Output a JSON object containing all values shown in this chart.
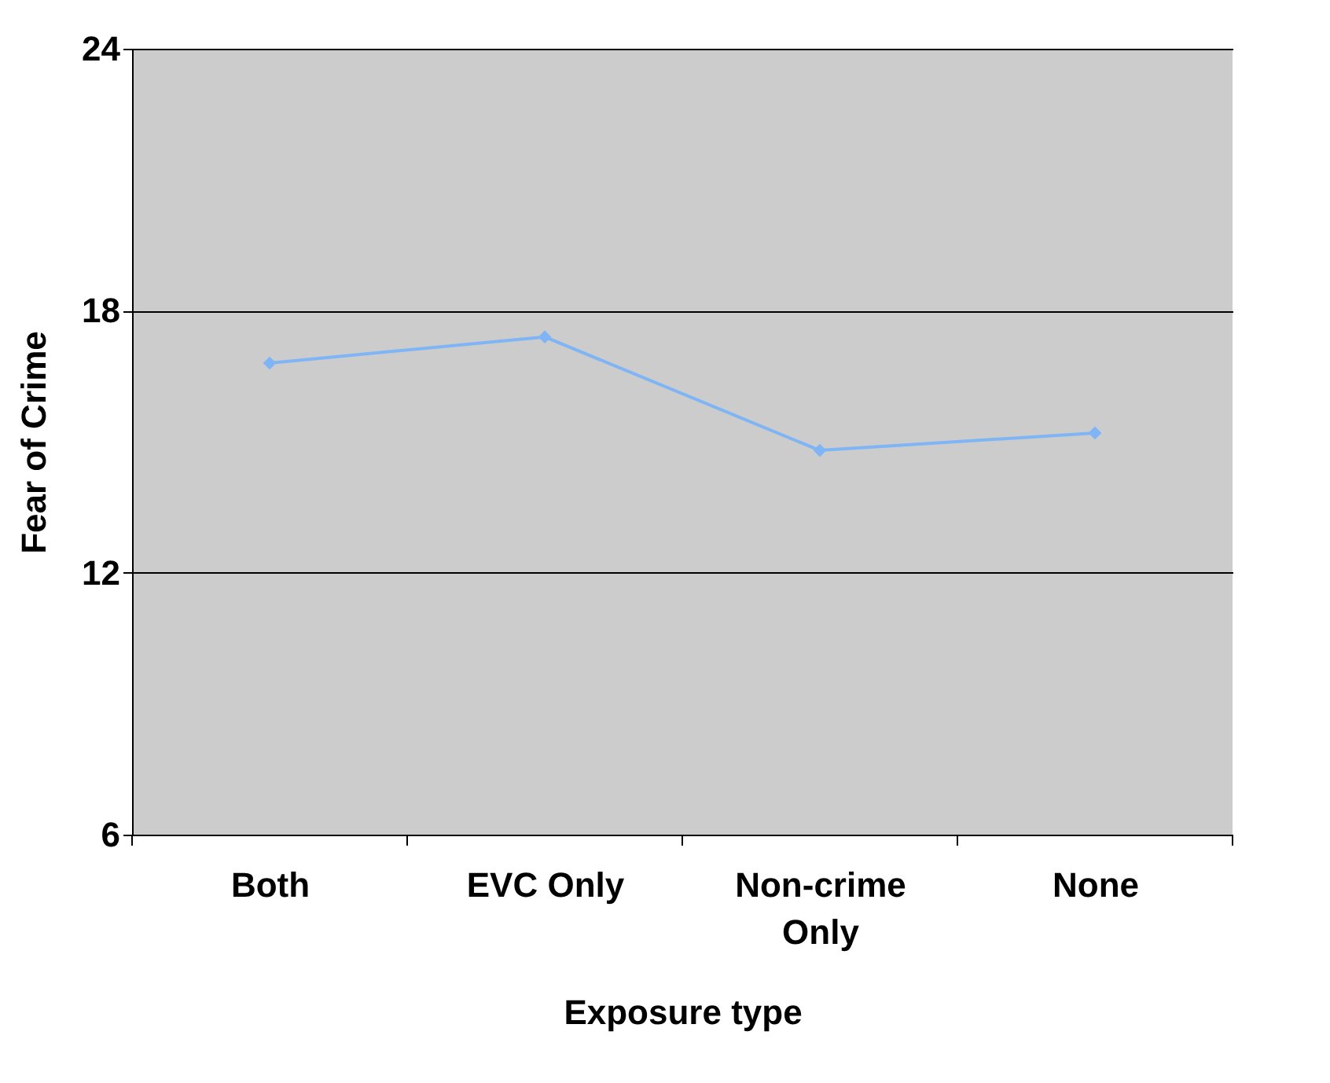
{
  "chart_data": {
    "type": "line",
    "xlabel": "Exposure type",
    "ylabel": "Fear of Crime",
    "categories": [
      "Both",
      "EVC Only",
      "Non-crime Only",
      "None"
    ],
    "series": [
      {
        "color": "#7fb5f5",
        "values": [
          16.8,
          17.4,
          14.8,
          15.2
        ]
      }
    ],
    "ylim": [
      6,
      24
    ],
    "yticks": [
      6,
      12,
      18,
      24
    ],
    "grid": "y",
    "marker": "diamond",
    "line_style": "solid",
    "legend": false
  }
}
